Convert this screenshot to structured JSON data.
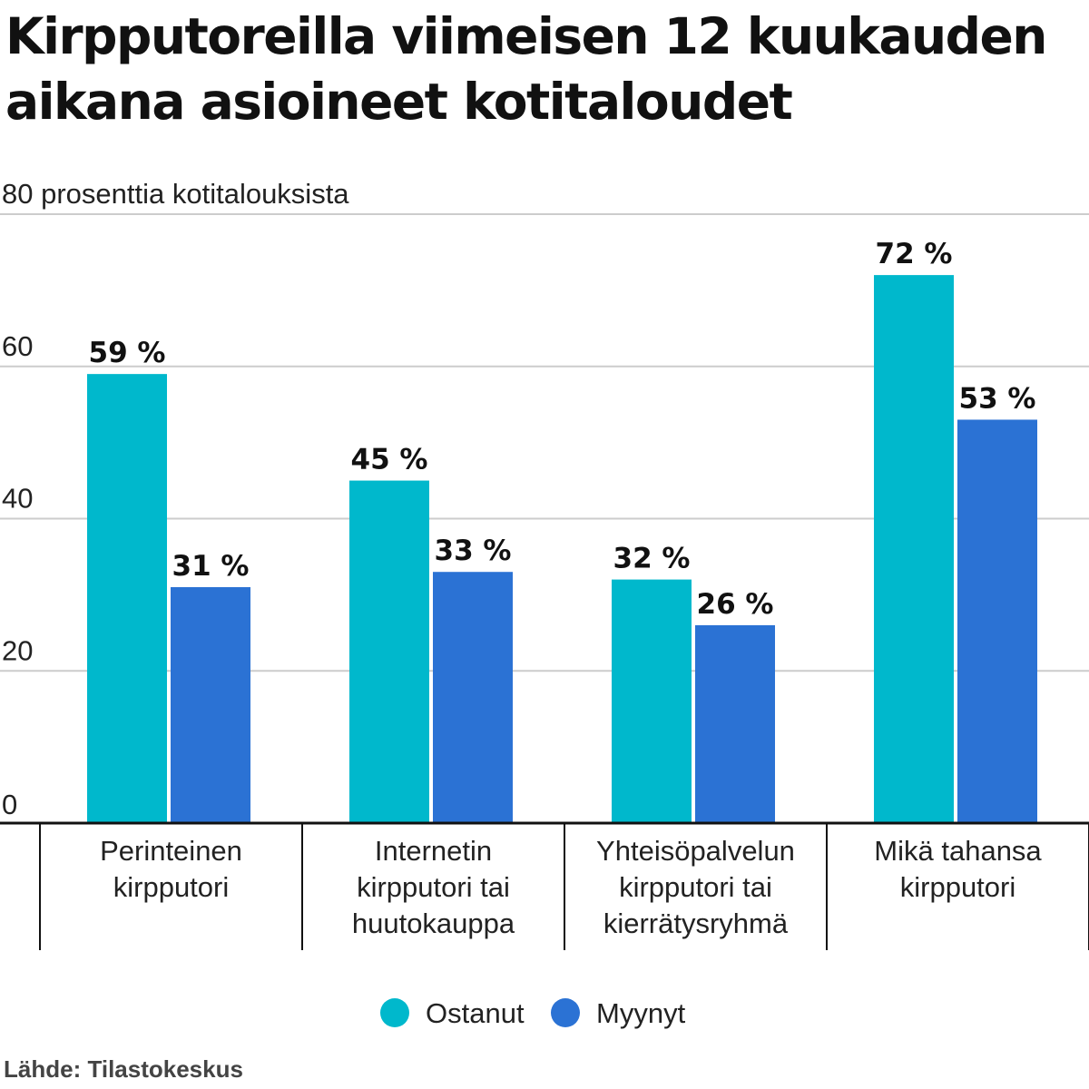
{
  "chart_data": {
    "type": "bar",
    "title": "Kirpputoreilla viimeisen 12 kuukauden aikana asioineet kotitaloudet",
    "ylabel": "prosenttia kotitalouksista",
    "ylim": [
      0,
      80
    ],
    "yticks": [
      0,
      20,
      40,
      60,
      80
    ],
    "grid": true,
    "legend": "bottom-center",
    "categories": [
      [
        "Perinteinen",
        "kirpputori"
      ],
      [
        "Internetin",
        "kirpputori tai",
        "huutokauppa"
      ],
      [
        "Yhteisöpalvelun",
        "kirpputori tai",
        "kierrätysryhmä"
      ],
      [
        "Mikä tahansa",
        "kirpputori"
      ]
    ],
    "series": [
      {
        "name": "Ostanut",
        "color": "#00b8cc",
        "values": [
          59,
          45,
          32,
          72
        ],
        "labels": [
          "59 %",
          "45 %",
          "32 %",
          "72 %"
        ]
      },
      {
        "name": "Myynyt",
        "color": "#2b72d4",
        "values": [
          31,
          33,
          26,
          53
        ],
        "labels": [
          "31 %",
          "33 %",
          "26 %",
          "53 %"
        ]
      }
    ]
  },
  "source": "Lähde: Tilastokeskus"
}
